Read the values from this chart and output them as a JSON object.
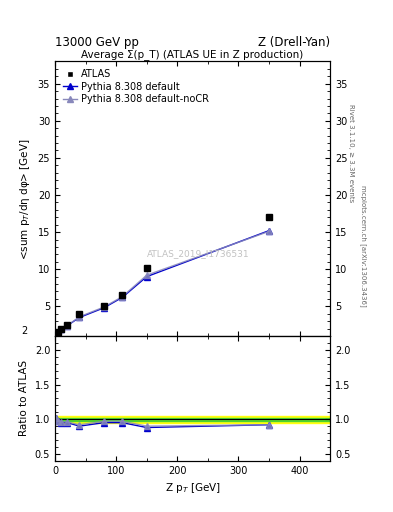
{
  "top_title_left": "13000 GeV pp",
  "top_title_right": "Z (Drell-Yan)",
  "plot_title": "Average Σ(p_T) (ATLAS UE in Z production)",
  "xlabel": "Z p$_T$ [GeV]",
  "ylabel_main": "<sum p$_T$/dη dφ> [GeV]",
  "ylabel_ratio": "Ratio to ATLAS",
  "right_label_top": "Rivet 3.1.10, ≥ 3.3M events",
  "right_label_bottom": "mcplots.cern.ch [arXiv:1306.3436]",
  "watermark": "ATLAS_2019_I1736531",
  "xlim": [
    0,
    450
  ],
  "ylim_main": [
    1.0,
    38
  ],
  "ylim_ratio": [
    0.4,
    2.2
  ],
  "yticks_main": [
    5,
    10,
    15,
    20,
    25,
    30,
    35
  ],
  "yticks_ratio": [
    0.5,
    1.0,
    1.5,
    2.0
  ],
  "xticks": [
    0,
    100,
    200,
    300,
    400
  ],
  "atlas_x": [
    2,
    5,
    10,
    20,
    40,
    80,
    110,
    150,
    350
  ],
  "atlas_y": [
    1.2,
    1.5,
    2.0,
    2.5,
    3.9,
    5.0,
    6.5,
    10.2,
    17.0
  ],
  "pythia_default_x": [
    2,
    5,
    10,
    20,
    40,
    80,
    110,
    150,
    350
  ],
  "pythia_default_y": [
    1.15,
    1.45,
    1.9,
    2.4,
    3.5,
    4.8,
    6.2,
    9.0,
    15.2
  ],
  "pythia_nocr_x": [
    2,
    5,
    10,
    20,
    40,
    80,
    110,
    150,
    350
  ],
  "pythia_nocr_y": [
    1.15,
    1.45,
    1.9,
    2.4,
    3.6,
    4.9,
    6.3,
    9.2,
    15.1
  ],
  "ratio_default_x": [
    2,
    5,
    10,
    20,
    40,
    80,
    110,
    150,
    350
  ],
  "ratio_default_y": [
    1.02,
    0.97,
    0.95,
    0.95,
    0.9,
    0.95,
    0.95,
    0.88,
    0.92
  ],
  "ratio_nocr_x": [
    2,
    5,
    10,
    20,
    40,
    80,
    110,
    150,
    350
  ],
  "ratio_nocr_y": [
    1.02,
    0.97,
    0.96,
    0.96,
    0.92,
    0.97,
    0.97,
    0.9,
    0.92
  ],
  "band_yellow": [
    0.95,
    1.05
  ],
  "band_green": [
    0.98,
    1.02
  ],
  "atlas_color": "#000000",
  "pythia_default_color": "#0000cc",
  "pythia_nocr_color": "#8888bb",
  "atlas_marker": "s",
  "atlas_markersize": 5,
  "tri_markersize": 5,
  "legend_fontsize": 7,
  "title_fontsize": 7.5,
  "axis_fontsize": 7.5,
  "tick_fontsize": 7,
  "watermark_fontsize": 6.5,
  "watermark_color": "#bbbbbb"
}
